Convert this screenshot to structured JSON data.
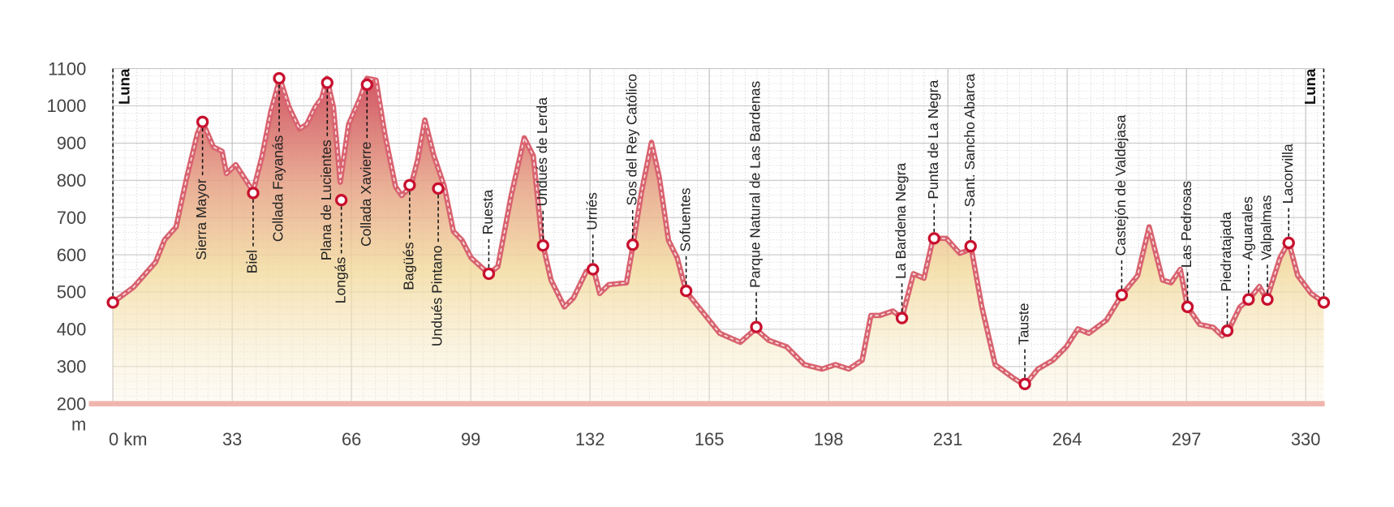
{
  "chart_data": {
    "type": "area",
    "y_label": "m",
    "color": "#d8636f",
    "grid": true,
    "xlim": [
      0,
      335
    ],
    "ylim": [
      200,
      1100
    ],
    "xticks": [
      {
        "value": 0,
        "label": "0 km"
      },
      33,
      66,
      99,
      132,
      165,
      198,
      231,
      264,
      297,
      330
    ],
    "yticks": [
      200,
      300,
      400,
      500,
      600,
      700,
      800,
      900,
      1000,
      1100
    ],
    "x": [
      0,
      5.7,
      11.8,
      14.3,
      17.5,
      20.4,
      23.4,
      24.8,
      27.8,
      30.2,
      31.4,
      34,
      36.4,
      38.8,
      41.3,
      43.7,
      46.2,
      48.7,
      51.6,
      53.6,
      56,
      57.8,
      59.2,
      61,
      62.9,
      65.2,
      68.4,
      70.3,
      72.8,
      75.2,
      78.2,
      79.9,
      82.4,
      84.3,
      86.3,
      88.8,
      91.7,
      94.2,
      96.6,
      99.1,
      104,
      106.5,
      110.2,
      113.8,
      116.3,
      118.7,
      121.2,
      124.9,
      127.4,
      131,
      133,
      134.7,
      137.2,
      142.1,
      143.8,
      146.3,
      149,
      151.2,
      153.7,
      156.1,
      158.6,
      163,
      167.9,
      173.6,
      177.8,
      181.5,
      186.4,
      191.3,
      196.2,
      199.9,
      203.6,
      207.3,
      209.7,
      212.2,
      215.8,
      218.3,
      221.5,
      224.4,
      226.9,
      230.6,
      234.3,
      237.5,
      240.4,
      244.1,
      249.1,
      252.3,
      255.9,
      260.1,
      263.8,
      267,
      270,
      274.9,
      279.1,
      283.5,
      286.7,
      290.4,
      292.8,
      295.3,
      297.3,
      300.7,
      304.4,
      306.9,
      308.6,
      311.8,
      314.3,
      317.2,
      319.2,
      322.9,
      325.3,
      327.8,
      331.5,
      335
    ],
    "values": [
      472,
      513,
      580,
      640,
      675,
      806,
      926,
      957,
      890,
      878,
      818,
      842,
      806,
      770,
      866,
      985,
      1074,
      997,
      938,
      950,
      997,
      1021,
      1074,
      997,
      795,
      950,
      1021,
      1074,
      1069,
      926,
      783,
      759,
      783,
      854,
      962,
      866,
      783,
      663,
      639,
      592,
      549,
      568,
      759,
      914,
      866,
      639,
      532,
      460,
      484,
      556,
      561,
      496,
      520,
      525,
      620,
      771,
      902,
      806,
      639,
      592,
      501,
      448,
      389,
      365,
      401,
      370,
      353,
      305,
      293,
      305,
      293,
      317,
      437,
      437,
      449,
      430,
      549,
      537,
      644,
      644,
      604,
      616,
      460,
      305,
      269,
      250,
      293,
      317,
      353,
      401,
      389,
      425,
      492,
      544,
      675,
      532,
      525,
      561,
      460,
      413,
      405,
      382,
      396,
      460,
      480,
      515,
      480,
      592,
      635,
      544,
      496,
      472
    ],
    "waypoints": [
      {
        "name": "Luna",
        "km": 0,
        "elevation": 472,
        "side": "top"
      },
      {
        "name": "Sierra Mayor",
        "km": 24.8,
        "elevation": 957,
        "side": "below"
      },
      {
        "name": "Biel",
        "km": 38.8,
        "elevation": 766,
        "side": "below"
      },
      {
        "name": "Collada Fayanás",
        "km": 46,
        "elevation": 1074,
        "side": "below"
      },
      {
        "name": "Plana de Lucientes",
        "km": 59.3,
        "elevation": 1062,
        "side": "below"
      },
      {
        "name": "Longás",
        "km": 63.2,
        "elevation": 747,
        "side": "below"
      },
      {
        "name": "Collada Xavierre",
        "km": 70.3,
        "elevation": 1057,
        "side": "below"
      },
      {
        "name": "Bagüés",
        "km": 82.1,
        "elevation": 787,
        "side": "below"
      },
      {
        "name": "Undués Pintano",
        "km": 90,
        "elevation": 778,
        "side": "below"
      },
      {
        "name": "Ruesta",
        "km": 104,
        "elevation": 549,
        "side": "above"
      },
      {
        "name": "Undués de Lerda",
        "km": 119,
        "elevation": 625,
        "side": "above"
      },
      {
        "name": "Urriés",
        "km": 132.8,
        "elevation": 561,
        "side": "above"
      },
      {
        "name": "Sos del Rey Católico",
        "km": 143.8,
        "elevation": 627,
        "side": "above"
      },
      {
        "name": "Sofuentes",
        "km": 158.6,
        "elevation": 503,
        "side": "above"
      },
      {
        "name": "Parque Natural de Las Bardenas",
        "km": 178,
        "elevation": 406,
        "side": "above"
      },
      {
        "name": "La Bardena Negra",
        "km": 218.3,
        "elevation": 430,
        "side": "above"
      },
      {
        "name": "Punta de La Negra",
        "km": 227.2,
        "elevation": 644,
        "side": "above"
      },
      {
        "name": "Sant. Sancho Abarca",
        "km": 237.3,
        "elevation": 623,
        "side": "above"
      },
      {
        "name": "Tauste",
        "km": 252.3,
        "elevation": 253,
        "side": "above"
      },
      {
        "name": "Castejón de Valdejasa",
        "km": 279.1,
        "elevation": 492,
        "side": "above"
      },
      {
        "name": "Las Pedrosas",
        "km": 297.3,
        "elevation": 460,
        "side": "above"
      },
      {
        "name": "Piedratajada",
        "km": 308.3,
        "elevation": 396,
        "side": "above"
      },
      {
        "name": "Aguarales",
        "km": 314.2,
        "elevation": 480,
        "side": "above"
      },
      {
        "name": "Valpalmas",
        "km": 319.4,
        "elevation": 480,
        "side": "above"
      },
      {
        "name": "Lacorvilla",
        "km": 325.3,
        "elevation": 632,
        "side": "above"
      },
      {
        "name": "Luna",
        "km": 335,
        "elevation": 472,
        "side": "top"
      }
    ]
  }
}
